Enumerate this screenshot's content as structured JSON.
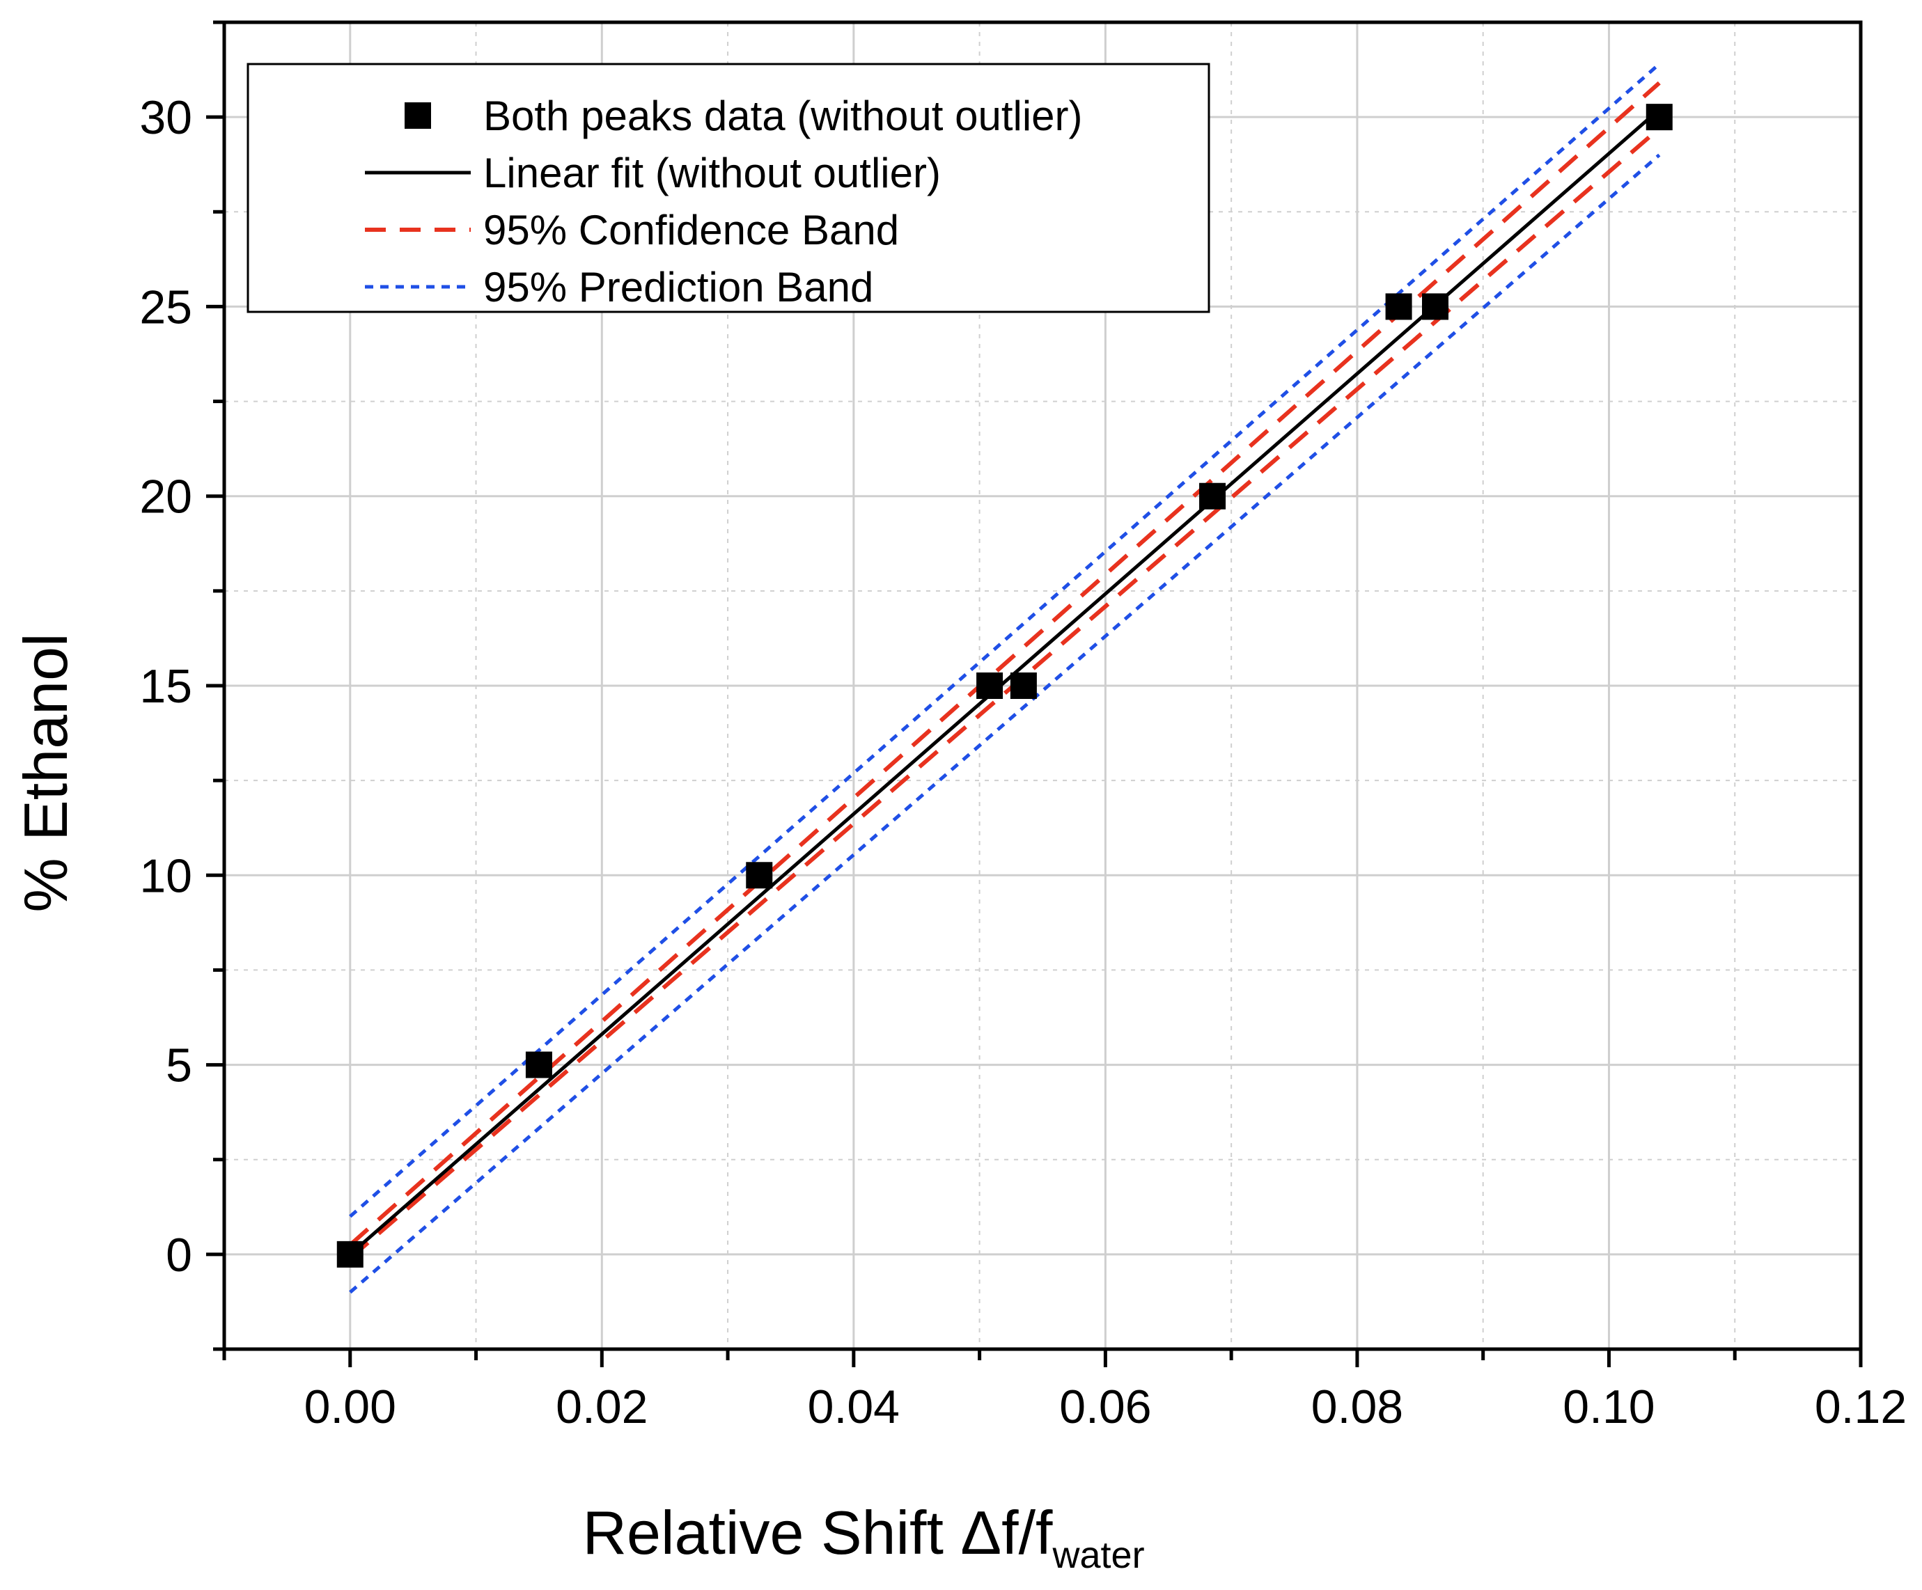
{
  "chart_data": {
    "type": "scatter",
    "title": "",
    "xlabel": "Relative Shift Δf/f",
    "xlabel_subscript": "water",
    "ylabel": "% Ethanol",
    "xlim": [
      -0.01,
      0.12
    ],
    "ylim": [
      -2.5,
      32.5
    ],
    "x_ticks": [
      0.0,
      0.02,
      0.04,
      0.06,
      0.08,
      0.1,
      0.12
    ],
    "x_tick_labels": [
      "0.00",
      "0.02",
      "0.04",
      "0.06",
      "0.08",
      "0.10",
      "0.12"
    ],
    "y_ticks": [
      0,
      5,
      10,
      15,
      20,
      25,
      30
    ],
    "y_tick_labels": [
      "0",
      "5",
      "10",
      "15",
      "20",
      "25",
      "30"
    ],
    "grid": true,
    "legend_position": "top-left",
    "series": [
      {
        "name": "Both peaks data (without outlier)",
        "kind": "points",
        "color": "#000000",
        "points": [
          [
            0.0,
            0
          ],
          [
            0.015,
            5
          ],
          [
            0.0325,
            10
          ],
          [
            0.0508,
            15
          ],
          [
            0.0535,
            15
          ],
          [
            0.0685,
            20
          ],
          [
            0.0833,
            25
          ],
          [
            0.0862,
            25
          ],
          [
            0.104,
            30
          ]
        ]
      },
      {
        "name": "Linear fit (without outlier)",
        "kind": "line",
        "color": "#000000",
        "points": [
          [
            0.0,
            0.0
          ],
          [
            0.104,
            30.2
          ]
        ]
      },
      {
        "name": "95% Confidence Band",
        "kind": "dashed",
        "color": "#e8321e",
        "upper": [
          [
            0.0,
            0.25
          ],
          [
            0.104,
            30.9
          ]
        ],
        "lower": [
          [
            0.0,
            -0.1
          ],
          [
            0.104,
            29.7
          ]
        ]
      },
      {
        "name": "95% Prediction Band",
        "kind": "dotted",
        "color": "#1f4fe6",
        "upper": [
          [
            0.0,
            1.0
          ],
          [
            0.104,
            31.4
          ]
        ],
        "lower": [
          [
            0.0,
            -1.0
          ],
          [
            0.104,
            29.0
          ]
        ]
      }
    ]
  }
}
